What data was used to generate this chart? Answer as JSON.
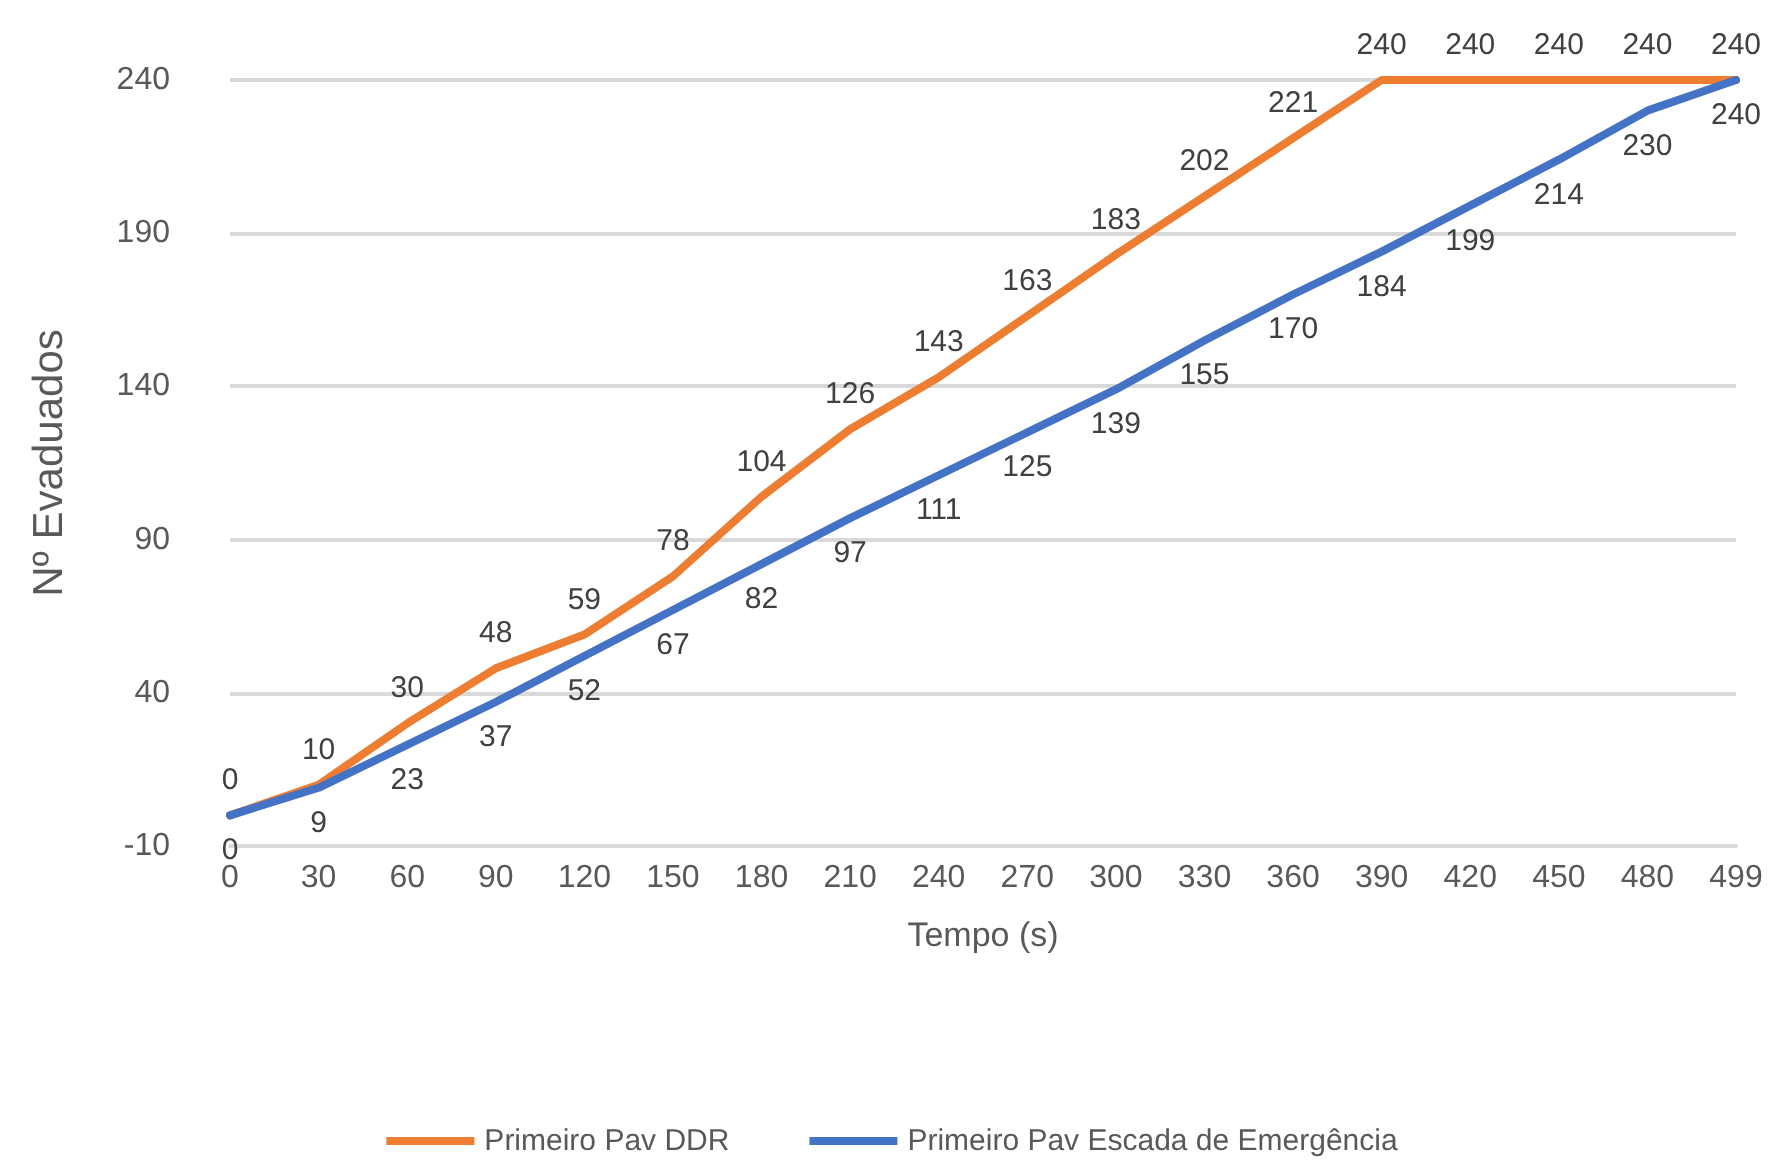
{
  "chart_data": {
    "type": "line",
    "xlabel": "Tempo (s)",
    "ylabel": "Nº Evaduados",
    "categories": [
      "0",
      "30",
      "60",
      "90",
      "120",
      "150",
      "180",
      "210",
      "240",
      "270",
      "300",
      "330",
      "360",
      "390",
      "420",
      "450",
      "480",
      "499"
    ],
    "series": [
      {
        "name": "Primeiro Pav DDR",
        "color": "#ed7d31",
        "values": [
          0,
          10,
          30,
          48,
          59,
          78,
          104,
          126,
          143,
          163,
          183,
          202,
          221,
          240,
          240,
          240,
          240,
          240
        ]
      },
      {
        "name": "Primeiro Pav Escada de Emergência",
        "color": "#4472c4",
        "values": [
          0,
          9,
          23,
          37,
          52,
          67,
          82,
          97,
          111,
          125,
          139,
          155,
          170,
          184,
          199,
          214,
          230,
          240
        ]
      }
    ],
    "ylim": [
      -10,
      240
    ],
    "yticks": [
      -10,
      40,
      90,
      140,
      190,
      240
    ],
    "grid": "y",
    "legend": "bottom",
    "marker": "none",
    "line_style": "solid",
    "data_labels": true
  }
}
